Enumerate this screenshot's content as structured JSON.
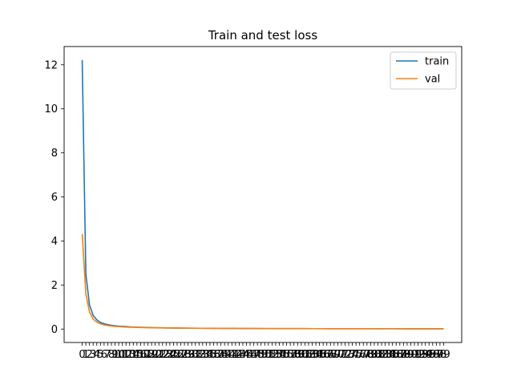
{
  "chart_data": {
    "type": "line",
    "title": "Train and test loss",
    "xlabel": "",
    "ylabel": "",
    "x": [
      0,
      1,
      2,
      3,
      4,
      5,
      6,
      7,
      8,
      9,
      10,
      11,
      12,
      13,
      14,
      15,
      16,
      17,
      18,
      19,
      20,
      21,
      22,
      23,
      24,
      25,
      26,
      27,
      28,
      29,
      30,
      31,
      32,
      33,
      34,
      35,
      36,
      37,
      38,
      39,
      40,
      41,
      42,
      43,
      44,
      45,
      46,
      47,
      48,
      49,
      50,
      51,
      52,
      53,
      54,
      55,
      56,
      57,
      58,
      59,
      60,
      61,
      62,
      63,
      64,
      65,
      66,
      67,
      68,
      69,
      70,
      71,
      72,
      73,
      74,
      75,
      76,
      77,
      78,
      79,
      80,
      81,
      82,
      83,
      84,
      85,
      86,
      87,
      88,
      89,
      90,
      91,
      92,
      93,
      94,
      95,
      96,
      97,
      98,
      99
    ],
    "xlim": [
      -4.95,
      103.95
    ],
    "ylim": [
      -0.61,
      12.83
    ],
    "yticks": [
      0,
      2,
      4,
      6,
      8,
      10,
      12
    ],
    "grid": false,
    "legend": "top-right",
    "series": [
      {
        "name": "train",
        "color": "#1f77b4",
        "values": [
          12.22,
          2.5,
          1.1,
          0.62,
          0.42,
          0.3,
          0.24,
          0.2,
          0.17,
          0.15,
          0.13,
          0.12,
          0.11,
          0.1,
          0.09,
          0.085,
          0.08,
          0.075,
          0.07,
          0.066,
          0.063,
          0.06,
          0.057,
          0.054,
          0.051,
          0.049,
          0.047,
          0.045,
          0.043,
          0.041,
          0.04,
          0.038,
          0.037,
          0.036,
          0.035,
          0.034,
          0.033,
          0.032,
          0.031,
          0.03,
          0.029,
          0.028,
          0.028,
          0.027,
          0.026,
          0.026,
          0.025,
          0.025,
          0.024,
          0.024,
          0.023,
          0.023,
          0.022,
          0.022,
          0.021,
          0.021,
          0.021,
          0.02,
          0.02,
          0.02,
          0.019,
          0.019,
          0.019,
          0.018,
          0.018,
          0.018,
          0.018,
          0.017,
          0.017,
          0.017,
          0.017,
          0.016,
          0.016,
          0.016,
          0.016,
          0.016,
          0.015,
          0.015,
          0.015,
          0.015,
          0.015,
          0.015,
          0.014,
          0.014,
          0.014,
          0.014,
          0.014,
          0.014,
          0.014,
          0.013,
          0.013,
          0.013,
          0.013,
          0.013,
          0.013,
          0.013,
          0.013,
          0.013,
          0.012,
          0.012
        ]
      },
      {
        "name": "val",
        "color": "#ff7f0e",
        "values": [
          4.32,
          1.6,
          0.78,
          0.45,
          0.32,
          0.24,
          0.19,
          0.16,
          0.14,
          0.12,
          0.11,
          0.1,
          0.09,
          0.085,
          0.08,
          0.075,
          0.07,
          0.066,
          0.063,
          0.06,
          0.057,
          0.054,
          0.051,
          0.049,
          0.047,
          0.045,
          0.043,
          0.041,
          0.04,
          0.038,
          0.037,
          0.036,
          0.035,
          0.034,
          0.033,
          0.032,
          0.031,
          0.03,
          0.029,
          0.028,
          0.028,
          0.027,
          0.026,
          0.026,
          0.025,
          0.025,
          0.024,
          0.024,
          0.023,
          0.023,
          0.022,
          0.022,
          0.021,
          0.021,
          0.021,
          0.02,
          0.02,
          0.02,
          0.019,
          0.019,
          0.019,
          0.018,
          0.018,
          0.018,
          0.018,
          0.017,
          0.017,
          0.017,
          0.017,
          0.016,
          0.016,
          0.016,
          0.016,
          0.016,
          0.015,
          0.015,
          0.015,
          0.015,
          0.015,
          0.015,
          0.014,
          0.014,
          0.014,
          0.014,
          0.014,
          0.014,
          0.014,
          0.013,
          0.013,
          0.013,
          0.013,
          0.013,
          0.013,
          0.013,
          0.013,
          0.013,
          0.012,
          0.012,
          0.012,
          0.012
        ]
      }
    ]
  }
}
